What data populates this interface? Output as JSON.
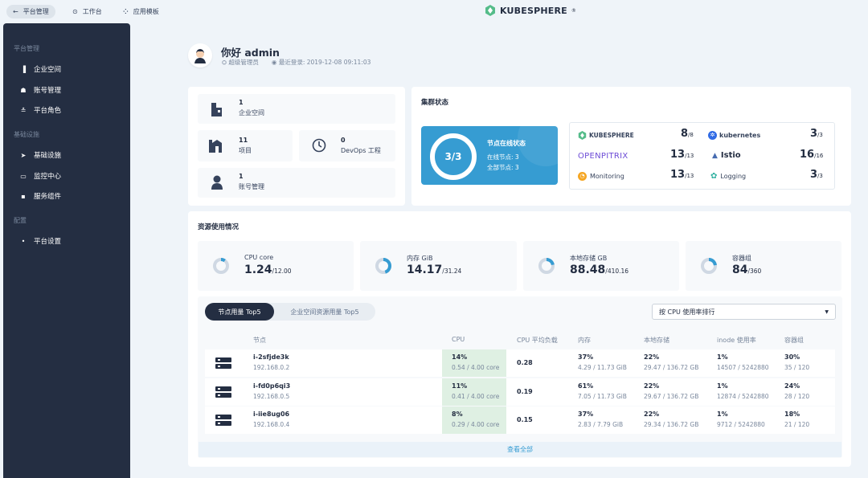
{
  "topbar": {
    "items": [
      {
        "label": "平台管理",
        "icon": "back-arrow-icon"
      },
      {
        "label": "工作台",
        "icon": "compass-icon"
      },
      {
        "label": "应用模板",
        "icon": "grid-icon"
      }
    ],
    "logo": "KUBESPHERE"
  },
  "sidebar": {
    "groups": [
      {
        "title": "平台管理",
        "items": [
          "企业空间",
          "账号管理",
          "平台角色"
        ]
      },
      {
        "title": "基础设施",
        "items": [
          "基础设施",
          "监控中心",
          "服务组件"
        ]
      },
      {
        "title": "配置",
        "items": [
          "平台设置"
        ]
      }
    ]
  },
  "welcome": {
    "greeting": "你好 admin",
    "role": "超级管理员",
    "last_login": "最近登录: 2019-12-08 09:11:03"
  },
  "overview": {
    "workspaces": {
      "count": "1",
      "label": "企业空间"
    },
    "projects": {
      "count": "11",
      "label": "项目"
    },
    "devops": {
      "count": "0",
      "label": "DevOps 工程"
    },
    "accounts": {
      "count": "1",
      "label": "账号管理"
    }
  },
  "cluster": {
    "title": "集群状态",
    "node_ratio": "3/3",
    "node_status_title": "节点在线状态",
    "online_nodes": "在线节点: 3",
    "total_nodes": "全部节点: 3",
    "components": [
      {
        "name": "KUBESPHERE",
        "value": "8",
        "total": "/8",
        "color": "#36435c"
      },
      {
        "name": "kubernetes",
        "value": "3",
        "total": "/3",
        "color": "#326ce5"
      },
      {
        "name": "OPENPITRIX",
        "value": "13",
        "total": "/13",
        "color": "#6c4bd6"
      },
      {
        "name": "Istio",
        "value": "16",
        "total": "/16",
        "color": "#466bb0"
      },
      {
        "name": "Monitoring",
        "value": "13",
        "total": "/13",
        "color": "#f5a623"
      },
      {
        "name": "Logging",
        "value": "3",
        "total": "/3",
        "color": "#2fb0a0"
      }
    ]
  },
  "resources": {
    "title": "资源使用情况",
    "items": [
      {
        "label": "CPU core",
        "value": "1.24",
        "total": "/12.00",
        "ratio": 0.1
      },
      {
        "label": "内存 GiB",
        "value": "14.17",
        "total": "/31.24",
        "ratio": 0.45
      },
      {
        "label": "本地存储 GB",
        "value": "88.48",
        "total": "/410.16",
        "ratio": 0.22
      },
      {
        "label": "容器组",
        "value": "84",
        "total": "/360",
        "ratio": 0.23
      }
    ]
  },
  "top5": {
    "tabs": [
      "节点用量 Top5",
      "企业空间资源用量 Top5"
    ],
    "sort_select": "按 CPU 使用率排行",
    "headers": [
      "节点",
      "CPU",
      "CPU 平均负载",
      "内存",
      "本地存储",
      "inode 使用率",
      "容器组"
    ],
    "rows": [
      {
        "name": "i-2sfjde3k",
        "ip": "192.168.0.2",
        "cpu": "14%",
        "cpu_detail": "0.54 / 4.00 core",
        "load": "0.28",
        "mem": "37%",
        "mem_detail": "4.29 / 11.73 GiB",
        "disk": "22%",
        "disk_detail": "29.47 / 136.72 GB",
        "inode": "1%",
        "inode_detail": "14507 / 5242880",
        "pods": "30%",
        "pods_detail": "35 / 120"
      },
      {
        "name": "i-fd0p6qi3",
        "ip": "192.168.0.5",
        "cpu": "11%",
        "cpu_detail": "0.41 / 4.00 core",
        "load": "0.19",
        "mem": "61%",
        "mem_detail": "7.05 / 11.73 GiB",
        "disk": "22%",
        "disk_detail": "29.67 / 136.72 GB",
        "inode": "1%",
        "inode_detail": "12874 / 5242880",
        "pods": "24%",
        "pods_detail": "28 / 120"
      },
      {
        "name": "i-iie8ug06",
        "ip": "192.168.0.4",
        "cpu": "8%",
        "cpu_detail": "0.29 / 4.00 core",
        "load": "0.15",
        "mem": "37%",
        "mem_detail": "2.83 / 7.79 GiB",
        "disk": "22%",
        "disk_detail": "29.34 / 136.72 GB",
        "inode": "1%",
        "inode_detail": "9712 / 5242880",
        "pods": "18%",
        "pods_detail": "21 / 120"
      }
    ],
    "view_all": "查看全部"
  }
}
